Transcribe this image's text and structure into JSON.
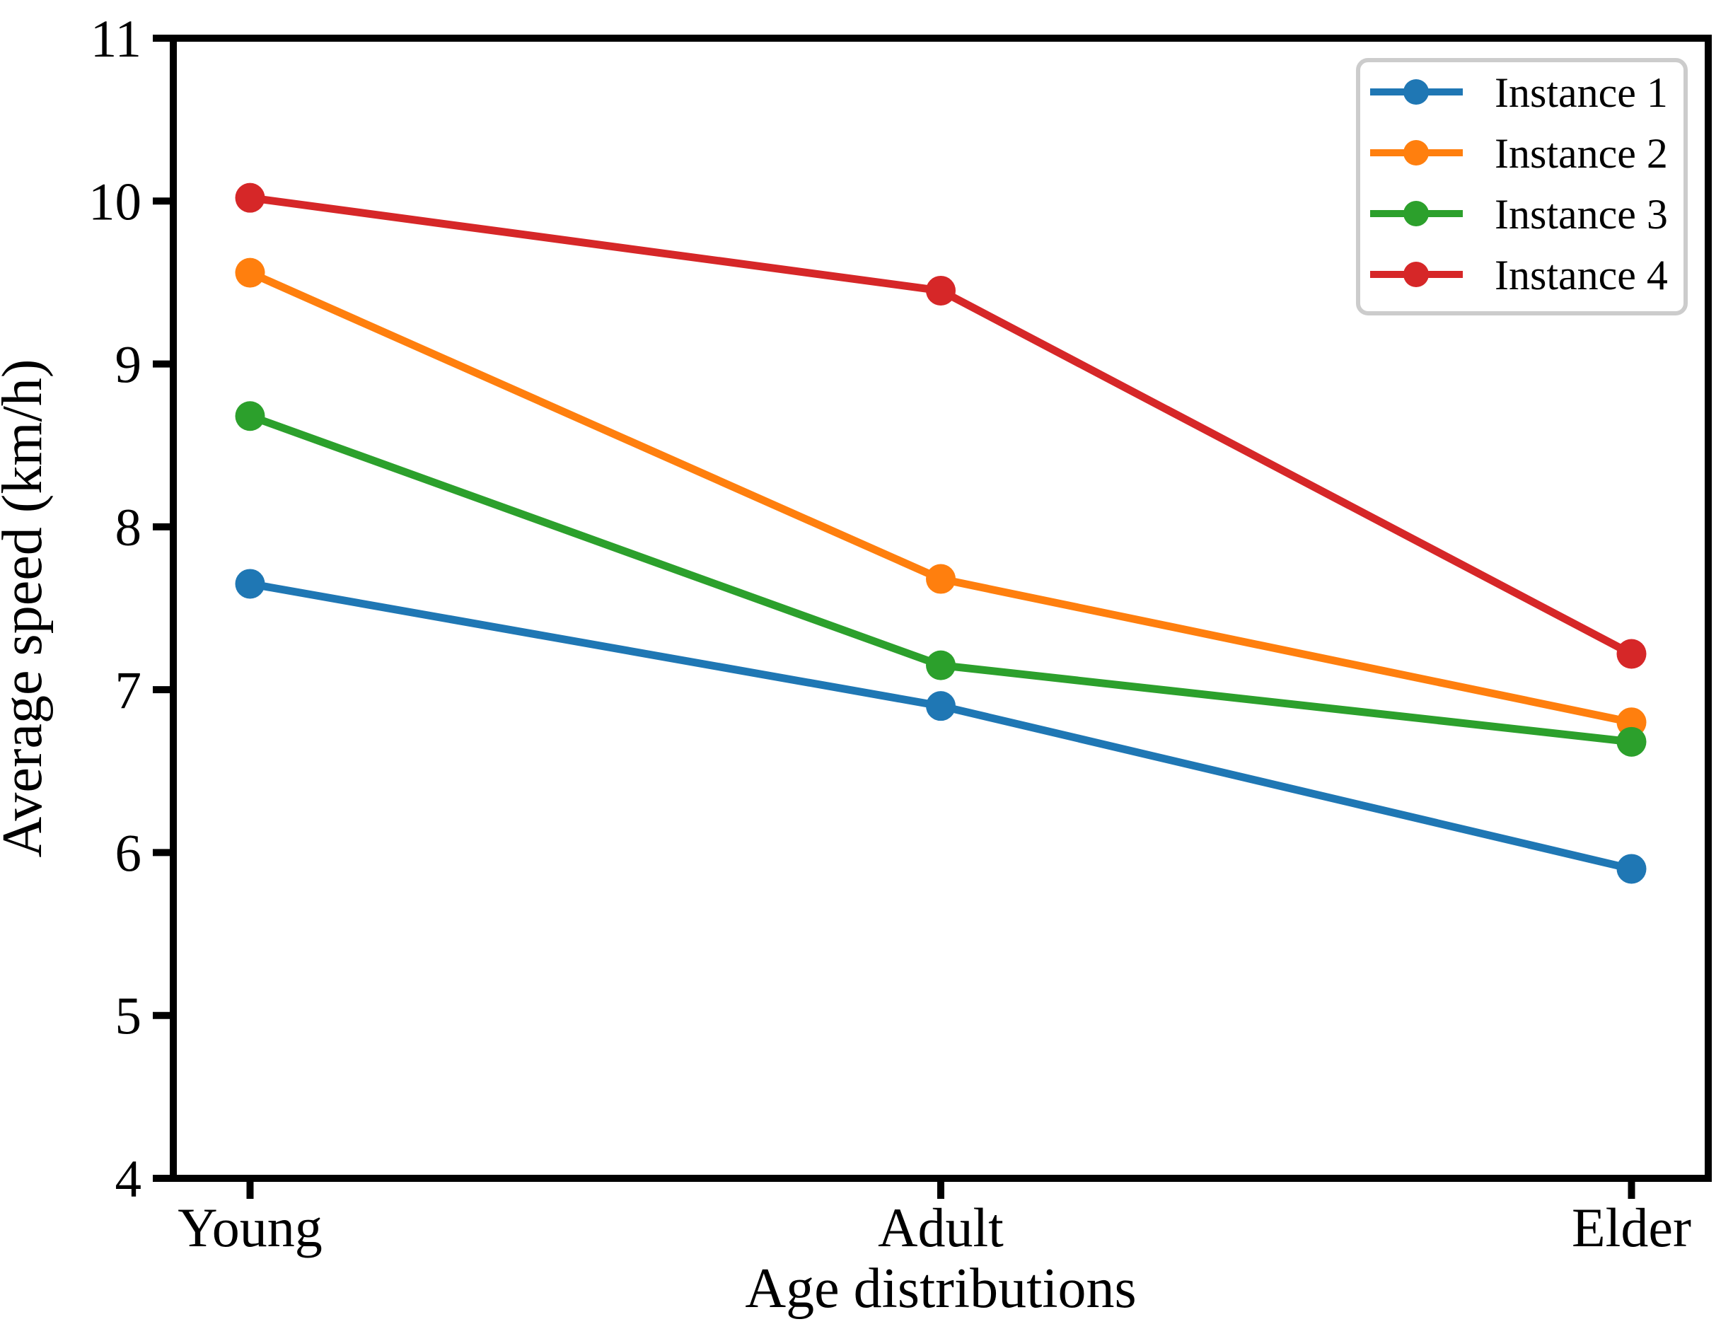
{
  "chart_data": {
    "type": "line",
    "title": "",
    "xlabel": "Age distributions",
    "ylabel": "Average speed (km/h)",
    "categories": [
      "Young",
      "Adult",
      "Elder"
    ],
    "ylim": [
      4,
      11
    ],
    "yticks": [
      4,
      5,
      6,
      7,
      8,
      9,
      10,
      11
    ],
    "grid": false,
    "legend_position": "upper right",
    "marker": "circle",
    "axis_color": "#000000",
    "legend_border_color": "#cccccc",
    "series": [
      {
        "name": "Instance 1",
        "color": "#1f77b4",
        "values": [
          7.65,
          6.9,
          5.9
        ]
      },
      {
        "name": "Instance 2",
        "color": "#ff7f0e",
        "values": [
          9.56,
          7.68,
          6.8
        ]
      },
      {
        "name": "Instance 3",
        "color": "#2ca02c",
        "values": [
          8.68,
          7.15,
          6.68
        ]
      },
      {
        "name": "Instance 4",
        "color": "#d62728",
        "values": [
          10.02,
          9.45,
          7.22
        ]
      }
    ]
  }
}
